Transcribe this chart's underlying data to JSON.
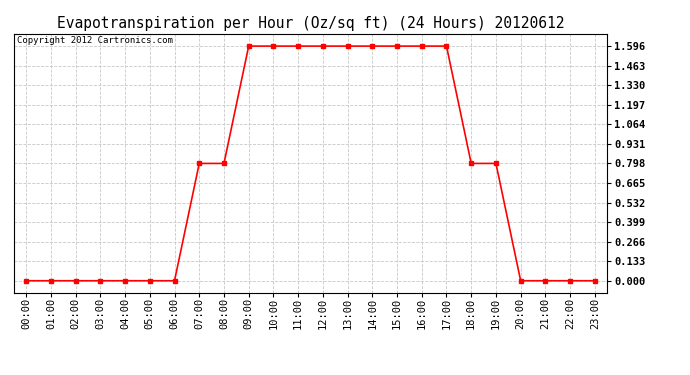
{
  "title": "Evapotranspiration per Hour (Oz/sq ft) (24 Hours) 20120612",
  "copyright": "Copyright 2012 Cartronics.com",
  "x_labels": [
    "00:00",
    "01:00",
    "02:00",
    "03:00",
    "04:00",
    "05:00",
    "06:00",
    "07:00",
    "08:00",
    "09:00",
    "10:00",
    "11:00",
    "12:00",
    "13:00",
    "14:00",
    "15:00",
    "16:00",
    "17:00",
    "18:00",
    "19:00",
    "20:00",
    "21:00",
    "22:00",
    "23:00"
  ],
  "y_values": [
    0.0,
    0.0,
    0.0,
    0.0,
    0.0,
    0.0,
    0.0,
    0.798,
    0.798,
    1.596,
    1.596,
    1.596,
    1.596,
    1.596,
    1.596,
    1.596,
    1.596,
    1.596,
    0.798,
    0.798,
    0.0,
    0.0,
    0.0,
    0.0
  ],
  "y_ticks": [
    0.0,
    0.133,
    0.266,
    0.399,
    0.532,
    0.665,
    0.798,
    0.931,
    1.064,
    1.197,
    1.33,
    1.463,
    1.596
  ],
  "ylim_min": -0.08,
  "ylim_max": 1.68,
  "line_color": "#ff0000",
  "marker": "s",
  "marker_size": 3,
  "bg_color": "#ffffff",
  "grid_color": "#c8c8c8",
  "title_fontsize": 10.5,
  "copyright_fontsize": 6.5,
  "tick_fontsize": 7.5,
  "ytick_fontsize": 7.5
}
